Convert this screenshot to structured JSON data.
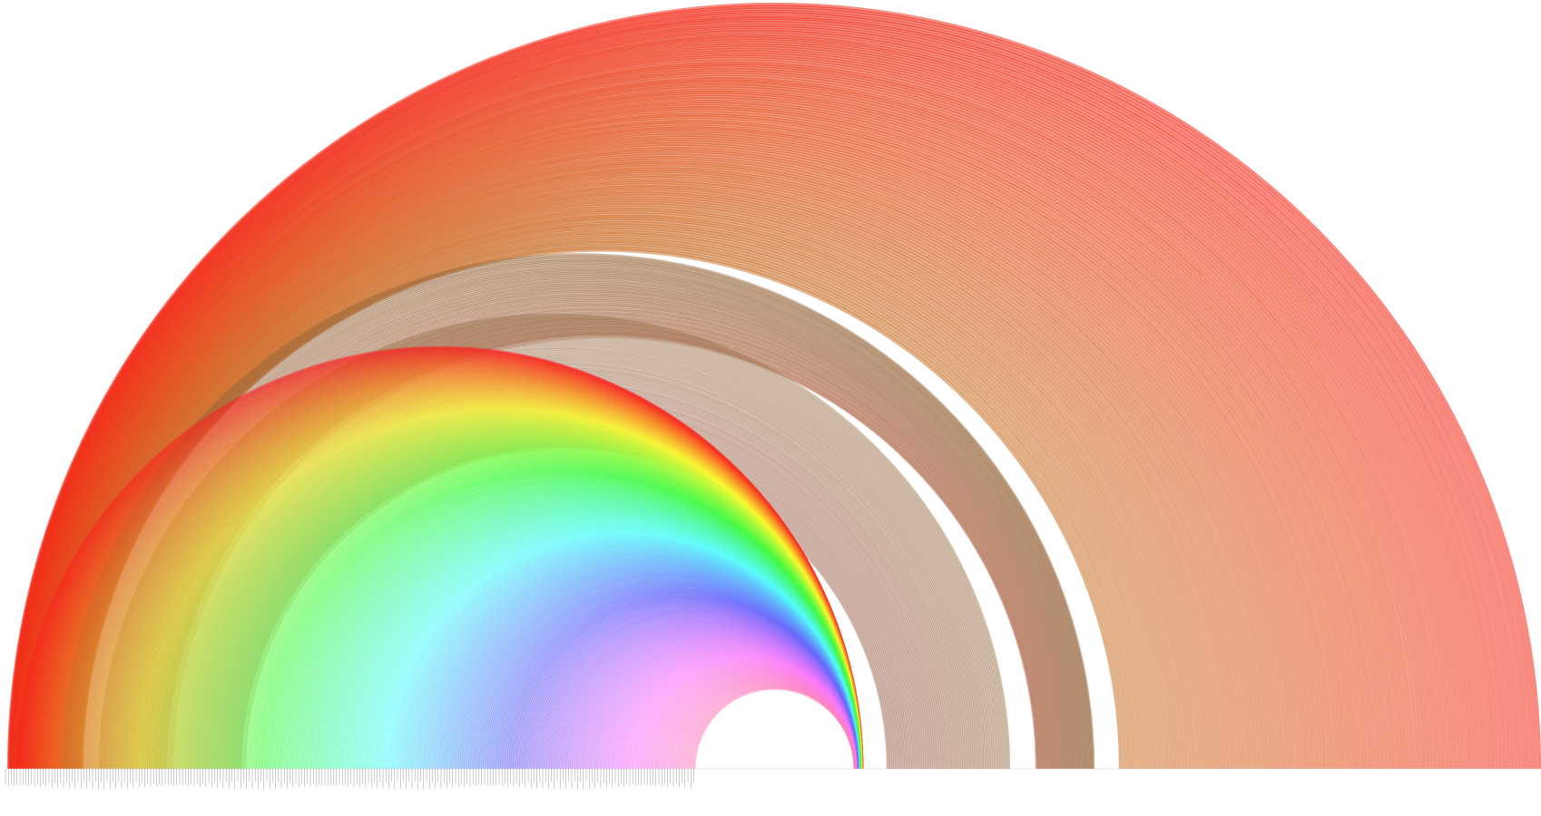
{
  "diagram": {
    "type": "arc-diagram",
    "groups": [
      {
        "id": "g1",
        "label": "",
        "color": "#ff2a1a"
      },
      {
        "id": "g2",
        "label": "",
        "color": "#8a7a5a"
      },
      {
        "id": "g3",
        "label": "",
        "color": "#8a6a4a"
      },
      {
        "id": "g4",
        "label": "",
        "color": "#d9803f"
      }
    ],
    "colors": {
      "spectrum": [
        "#ff2a1a",
        "#ff7a10",
        "#ffd21a",
        "#e8ff3a",
        "#6cff3a",
        "#3aff6a",
        "#4affe6",
        "#3ab8ff",
        "#5a6aff",
        "#9a3aff",
        "#ff4af0",
        "#ffb4e6"
      ],
      "brown_band": "#9a6a3a",
      "outer_band": "#e0803a"
    }
  }
}
